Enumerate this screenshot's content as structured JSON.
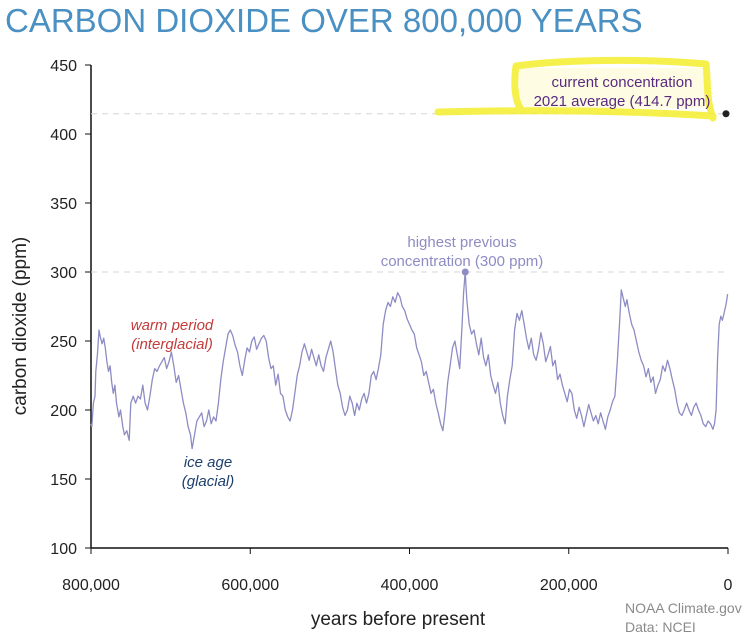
{
  "chart_data": {
    "type": "line",
    "title": "CARBON DIOXIDE OVER 800,000 YEARS",
    "xlabel": "years before present",
    "ylabel": "carbon dioxide (ppm)",
    "xlim": [
      800000,
      0
    ],
    "ylim": [
      100,
      450
    ],
    "x_ticks": [
      "800,000",
      "600,000",
      "400,000",
      "200,000",
      "0"
    ],
    "y_ticks": [
      "450",
      "400",
      "350",
      "300",
      "250",
      "200",
      "150",
      "100"
    ],
    "grid": false,
    "reference_lines": [
      {
        "y": 300,
        "style": "dashed"
      },
      {
        "y": 414.7,
        "style": "dashed"
      }
    ],
    "series": [
      {
        "color": "#8d8cc4",
        "points": [
          [
            800000,
            190
          ],
          [
            799000,
            188
          ],
          [
            797000,
            205
          ],
          [
            795000,
            210
          ],
          [
            794000,
            228
          ],
          [
            792000,
            240
          ],
          [
            790000,
            258
          ],
          [
            788000,
            252
          ],
          [
            786000,
            248
          ],
          [
            784000,
            252
          ],
          [
            782000,
            245
          ],
          [
            780000,
            235
          ],
          [
            778000,
            228
          ],
          [
            776000,
            232
          ],
          [
            774000,
            220
          ],
          [
            772000,
            212
          ],
          [
            770000,
            218
          ],
          [
            768000,
            205
          ],
          [
            765000,
            195
          ],
          [
            763000,
            200
          ],
          [
            760000,
            188
          ],
          [
            758000,
            182
          ],
          [
            755000,
            185
          ],
          [
            752000,
            178
          ],
          [
            750000,
            205
          ],
          [
            747000,
            210
          ],
          [
            744000,
            205
          ],
          [
            741000,
            210
          ],
          [
            738000,
            208
          ],
          [
            735000,
            218
          ],
          [
            732000,
            205
          ],
          [
            729000,
            200
          ],
          [
            726000,
            210
          ],
          [
            723000,
            222
          ],
          [
            720000,
            230
          ],
          [
            717000,
            228
          ],
          [
            714000,
            232
          ],
          [
            711000,
            235
          ],
          [
            708000,
            238
          ],
          [
            705000,
            230
          ],
          [
            702000,
            235
          ],
          [
            699000,
            242
          ],
          [
            696000,
            232
          ],
          [
            693000,
            220
          ],
          [
            690000,
            225
          ],
          [
            687000,
            215
          ],
          [
            684000,
            205
          ],
          [
            681000,
            198
          ],
          [
            678000,
            188
          ],
          [
            675000,
            182
          ],
          [
            673000,
            172
          ],
          [
            670000,
            182
          ],
          [
            667000,
            192
          ],
          [
            664000,
            195
          ],
          [
            661000,
            198
          ],
          [
            658000,
            188
          ],
          [
            655000,
            192
          ],
          [
            652000,
            200
          ],
          [
            649000,
            190
          ],
          [
            646000,
            195
          ],
          [
            643000,
            192
          ],
          [
            640000,
            205
          ],
          [
            637000,
            222
          ],
          [
            634000,
            235
          ],
          [
            631000,
            245
          ],
          [
            628000,
            255
          ],
          [
            625000,
            258
          ],
          [
            622000,
            254
          ],
          [
            619000,
            247
          ],
          [
            616000,
            242
          ],
          [
            613000,
            232
          ],
          [
            610000,
            225
          ],
          [
            607000,
            236
          ],
          [
            604000,
            245
          ],
          [
            601000,
            242
          ],
          [
            598000,
            250
          ],
          [
            595000,
            253
          ],
          [
            592000,
            244
          ],
          [
            589000,
            248
          ],
          [
            586000,
            252
          ],
          [
            583000,
            254
          ],
          [
            580000,
            250
          ],
          [
            577000,
            238
          ],
          [
            574000,
            230
          ],
          [
            571000,
            232
          ],
          [
            568000,
            218
          ],
          [
            565000,
            226
          ],
          [
            562000,
            212
          ],
          [
            559000,
            210
          ],
          [
            556000,
            200
          ],
          [
            553000,
            195
          ],
          [
            550000,
            192
          ],
          [
            547000,
            200
          ],
          [
            544000,
            212
          ],
          [
            541000,
            225
          ],
          [
            538000,
            232
          ],
          [
            535000,
            242
          ],
          [
            532000,
            248
          ],
          [
            529000,
            242
          ],
          [
            526000,
            236
          ],
          [
            523000,
            244
          ],
          [
            520000,
            238
          ],
          [
            517000,
            232
          ],
          [
            514000,
            240
          ],
          [
            511000,
            232
          ],
          [
            508000,
            228
          ],
          [
            505000,
            238
          ],
          [
            502000,
            244
          ],
          [
            499000,
            250
          ],
          [
            496000,
            242
          ],
          [
            493000,
            230
          ],
          [
            490000,
            218
          ],
          [
            487000,
            212
          ],
          [
            484000,
            202
          ],
          [
            481000,
            196
          ],
          [
            478000,
            200
          ],
          [
            475000,
            210
          ],
          [
            472000,
            205
          ],
          [
            469000,
            196
          ],
          [
            466000,
            205
          ],
          [
            463000,
            200
          ],
          [
            460000,
            208
          ],
          [
            457000,
            212
          ],
          [
            454000,
            205
          ],
          [
            451000,
            212
          ],
          [
            448000,
            225
          ],
          [
            445000,
            228
          ],
          [
            442000,
            222
          ],
          [
            439000,
            230
          ],
          [
            436000,
            240
          ],
          [
            433000,
            262
          ],
          [
            430000,
            272
          ],
          [
            427000,
            278
          ],
          [
            424000,
            275
          ],
          [
            421000,
            282
          ],
          [
            418000,
            278
          ],
          [
            415000,
            285
          ],
          [
            412000,
            282
          ],
          [
            409000,
            275
          ],
          [
            406000,
            272
          ],
          [
            403000,
            266
          ],
          [
            400000,
            262
          ],
          [
            397000,
            258
          ],
          [
            394000,
            255
          ],
          [
            391000,
            245
          ],
          [
            388000,
            240
          ],
          [
            385000,
            235
          ],
          [
            382000,
            225
          ],
          [
            379000,
            228
          ],
          [
            376000,
            220
          ],
          [
            373000,
            212
          ],
          [
            370000,
            215
          ],
          [
            367000,
            205
          ],
          [
            364000,
            198
          ],
          [
            361000,
            190
          ],
          [
            358000,
            185
          ],
          [
            355000,
            200
          ],
          [
            352000,
            220
          ],
          [
            349000,
            232
          ],
          [
            346000,
            245
          ],
          [
            343000,
            250
          ],
          [
            340000,
            240
          ],
          [
            337000,
            230
          ],
          [
            334000,
            262
          ],
          [
            332000,
            285
          ],
          [
            330000,
            300
          ],
          [
            328000,
            280
          ],
          [
            325000,
            262
          ],
          [
            322000,
            255
          ],
          [
            319000,
            258
          ],
          [
            316000,
            248
          ],
          [
            313000,
            240
          ],
          [
            310000,
            252
          ],
          [
            307000,
            238
          ],
          [
            304000,
            232
          ],
          [
            301000,
            240
          ],
          [
            298000,
            225
          ],
          [
            295000,
            218
          ],
          [
            292000,
            212
          ],
          [
            289000,
            220
          ],
          [
            286000,
            205
          ],
          [
            283000,
            196
          ],
          [
            280000,
            190
          ],
          [
            277000,
            210
          ],
          [
            274000,
            222
          ],
          [
            271000,
            232
          ],
          [
            268000,
            258
          ],
          [
            265000,
            270
          ],
          [
            262000,
            265
          ],
          [
            259000,
            272
          ],
          [
            256000,
            262
          ],
          [
            253000,
            252
          ],
          [
            250000,
            244
          ],
          [
            247000,
            252
          ],
          [
            244000,
            240
          ],
          [
            241000,
            236
          ],
          [
            238000,
            244
          ],
          [
            235000,
            256
          ],
          [
            232000,
            248
          ],
          [
            229000,
            235
          ],
          [
            226000,
            240
          ],
          [
            223000,
            246
          ],
          [
            220000,
            232
          ],
          [
            217000,
            236
          ],
          [
            214000,
            222
          ],
          [
            211000,
            226
          ],
          [
            208000,
            218
          ],
          [
            205000,
            212
          ],
          [
            202000,
            206
          ],
          [
            199000,
            215
          ],
          [
            196000,
            212
          ],
          [
            193000,
            200
          ],
          [
            190000,
            194
          ],
          [
            187000,
            202
          ],
          [
            184000,
            196
          ],
          [
            181000,
            188
          ],
          [
            178000,
            196
          ],
          [
            175000,
            204
          ],
          [
            172000,
            198
          ],
          [
            169000,
            192
          ],
          [
            166000,
            196
          ],
          [
            163000,
            190
          ],
          [
            160000,
            198
          ],
          [
            157000,
            192
          ],
          [
            154000,
            186
          ],
          [
            151000,
            195
          ],
          [
            148000,
            200
          ],
          [
            145000,
            206
          ],
          [
            142000,
            210
          ],
          [
            139000,
            235
          ],
          [
            136000,
            265
          ],
          [
            134000,
            287
          ],
          [
            132000,
            282
          ],
          [
            129000,
            275
          ],
          [
            127000,
            280
          ],
          [
            124000,
            270
          ],
          [
            121000,
            262
          ],
          [
            118000,
            258
          ],
          [
            115000,
            250
          ],
          [
            112000,
            242
          ],
          [
            109000,
            236
          ],
          [
            106000,
            232
          ],
          [
            103000,
            224
          ],
          [
            100000,
            230
          ],
          [
            97000,
            220
          ],
          [
            94000,
            224
          ],
          [
            91000,
            212
          ],
          [
            88000,
            218
          ],
          [
            85000,
            222
          ],
          [
            82000,
            232
          ],
          [
            79000,
            228
          ],
          [
            76000,
            236
          ],
          [
            73000,
            230
          ],
          [
            70000,
            222
          ],
          [
            67000,
            215
          ],
          [
            64000,
            205
          ],
          [
            61000,
            198
          ],
          [
            58000,
            196
          ],
          [
            55000,
            200
          ],
          [
            52000,
            205
          ],
          [
            49000,
            200
          ],
          [
            46000,
            196
          ],
          [
            43000,
            202
          ],
          [
            40000,
            205
          ],
          [
            37000,
            200
          ],
          [
            34000,
            196
          ],
          [
            31000,
            190
          ],
          [
            28000,
            188
          ],
          [
            25000,
            192
          ],
          [
            22000,
            190
          ],
          [
            19000,
            186
          ],
          [
            17000,
            190
          ],
          [
            15000,
            200
          ],
          [
            13000,
            238
          ],
          [
            11000,
            262
          ],
          [
            9000,
            268
          ],
          [
            7000,
            265
          ],
          [
            5000,
            270
          ],
          [
            3000,
            275
          ],
          [
            1500,
            280
          ],
          [
            500,
            284
          ]
        ]
      }
    ],
    "annotations": {
      "highest_previous": {
        "x": 330000,
        "y": 300,
        "line1": "highest previous",
        "line2": "concentration (300 ppm)",
        "color": "#8d8cc4"
      },
      "current": {
        "x": 0,
        "y": 414.7,
        "line1": "current concentration",
        "line2": "2021 average (414.7 ppm)",
        "color": "#5a2a82",
        "highlight": "#f5ee3a"
      },
      "warm": {
        "line1": "warm period",
        "line2": "(interglacial)",
        "color": "#c23b3b"
      },
      "ice": {
        "line1": "ice age",
        "line2": "(glacial)",
        "color": "#1d3f6e"
      }
    },
    "credits": {
      "line1": "NOAA Climate.gov",
      "line2": "Data: NCEI"
    }
  }
}
